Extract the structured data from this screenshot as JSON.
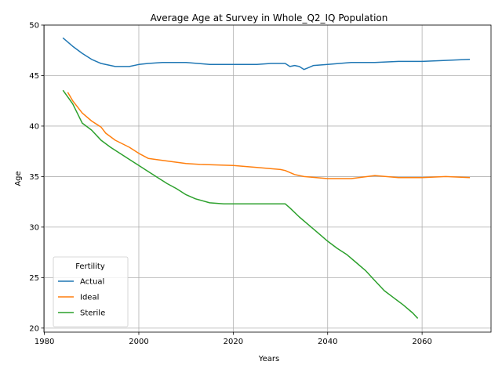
{
  "chart_data": {
    "type": "line",
    "title": "Average Age at Survey in Whole_Q2_IQ Population",
    "xlabel": "Years",
    "ylabel": "Age",
    "xlim": [
      1979.9,
      2074.6
    ],
    "ylim": [
      19.6,
      50.0
    ],
    "xticks": [
      1980,
      2000,
      2020,
      2040,
      2060
    ],
    "yticks": [
      20,
      25,
      30,
      35,
      40,
      45,
      50
    ],
    "grid": true,
    "legend": {
      "title": "Fertility",
      "placement": "lower-left"
    },
    "series": [
      {
        "name": "Actual",
        "color": "#1f77b4",
        "x": [
          1984,
          1986,
          1988,
          1990,
          1992,
          1995,
          1998,
          2000,
          2002,
          2005,
          2010,
          2015,
          2020,
          2025,
          2028,
          2031,
          2032,
          2033,
          2034,
          2035,
          2036,
          2037,
          2040,
          2045,
          2050,
          2055,
          2060,
          2065,
          2070
        ],
        "values": [
          48.7,
          47.9,
          47.2,
          46.6,
          46.2,
          45.9,
          45.9,
          46.1,
          46.2,
          46.3,
          46.3,
          46.1,
          46.1,
          46.1,
          46.2,
          46.2,
          45.9,
          46.0,
          45.9,
          45.6,
          45.8,
          46.0,
          46.1,
          46.3,
          46.3,
          46.4,
          46.4,
          46.5,
          46.6
        ]
      },
      {
        "name": "Ideal",
        "color": "#ff7f0e",
        "x": [
          1985,
          1986,
          1988,
          1990,
          1992,
          1993,
          1995,
          1998,
          2000,
          2002,
          2005,
          2010,
          2013,
          2020,
          2025,
          2030,
          2031,
          2033,
          2035,
          2040,
          2045,
          2050,
          2055,
          2060,
          2065,
          2070
        ],
        "values": [
          43.3,
          42.5,
          41.3,
          40.5,
          39.9,
          39.3,
          38.6,
          37.9,
          37.3,
          36.8,
          36.6,
          36.3,
          36.2,
          36.1,
          35.9,
          35.7,
          35.6,
          35.2,
          35.0,
          34.8,
          34.8,
          35.1,
          34.9,
          34.9,
          35.0,
          34.9
        ]
      },
      {
        "name": "Sterile",
        "color": "#2ca02c",
        "x": [
          1984,
          1986,
          1988,
          1990,
          1992,
          1994,
          1996,
          1998,
          2000,
          2002,
          2004,
          2006,
          2008,
          2010,
          2012,
          2015,
          2018,
          2020,
          2025,
          2031,
          2032,
          2034,
          2036,
          2038,
          2040,
          2042,
          2044,
          2046,
          2048,
          2050,
          2052,
          2054,
          2056,
          2058,
          2059
        ],
        "values": [
          43.5,
          42.2,
          40.3,
          39.6,
          38.6,
          37.9,
          37.3,
          36.7,
          36.1,
          35.5,
          34.9,
          34.3,
          33.8,
          33.2,
          32.8,
          32.4,
          32.3,
          32.3,
          32.3,
          32.3,
          31.9,
          31.0,
          30.2,
          29.4,
          28.6,
          27.9,
          27.3,
          26.5,
          25.7,
          24.7,
          23.7,
          23.0,
          22.3,
          21.5,
          21.0
        ]
      }
    ]
  }
}
